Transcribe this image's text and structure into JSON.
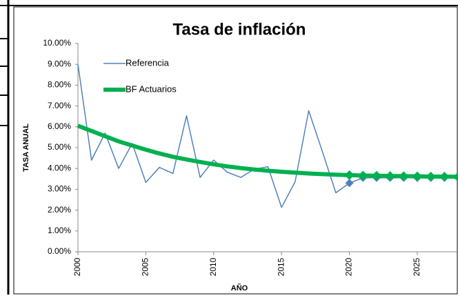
{
  "chart_data": {
    "type": "line",
    "title": "Tasa de inflación",
    "x_label": "AÑO",
    "y_label": "TASA ANUAL",
    "x": [
      2000,
      2001,
      2002,
      2003,
      2004,
      2005,
      2006,
      2007,
      2008,
      2009,
      2010,
      2011,
      2012,
      2013,
      2014,
      2015,
      2016,
      2017,
      2018,
      2019,
      2020,
      2021,
      2022,
      2023,
      2024,
      2025,
      2026,
      2027,
      2028
    ],
    "series": [
      {
        "name": "Referencia",
        "color": "#4f81bd",
        "width": 1.5,
        "marker_start": 2020,
        "values": [
          9.0,
          4.4,
          5.7,
          4.0,
          5.2,
          3.33,
          4.05,
          3.76,
          6.53,
          3.57,
          4.4,
          3.82,
          3.57,
          3.97,
          4.08,
          2.13,
          3.36,
          6.77,
          4.83,
          2.83,
          3.3,
          3.55,
          3.55,
          3.55,
          3.55,
          3.55,
          3.55,
          3.55,
          3.55
        ]
      },
      {
        "name": "BF Actuarios",
        "color": "#00b050",
        "width": 6,
        "marker_start": 2020,
        "values": [
          6.05,
          5.8,
          5.55,
          5.3,
          5.1,
          4.9,
          4.72,
          4.56,
          4.43,
          4.31,
          4.2,
          4.1,
          4.02,
          3.95,
          3.89,
          3.84,
          3.8,
          3.76,
          3.73,
          3.7,
          3.68,
          3.66,
          3.65,
          3.64,
          3.63,
          3.62,
          3.61,
          3.61,
          3.6
        ]
      }
    ],
    "xlim": [
      2000,
      2028
    ],
    "xticks": [
      2000,
      2005,
      2010,
      2015,
      2020,
      2025
    ],
    "ylim": [
      0,
      10
    ],
    "yticks": [
      {
        "value": 0,
        "label": "0.00%"
      },
      {
        "value": 1,
        "label": "1.00%"
      },
      {
        "value": 2,
        "label": "2.00%"
      },
      {
        "value": 3,
        "label": "3.00%"
      },
      {
        "value": 4,
        "label": "4.00%"
      },
      {
        "value": 5,
        "label": "5.00%"
      },
      {
        "value": 6,
        "label": "6.00%"
      },
      {
        "value": 7,
        "label": "7.00%"
      },
      {
        "value": 8,
        "label": "8.00%"
      },
      {
        "value": 9,
        "label": "9.00%"
      },
      {
        "value": 10,
        "label": "10.00%"
      }
    ],
    "grid": false,
    "legend": "upper-left"
  }
}
